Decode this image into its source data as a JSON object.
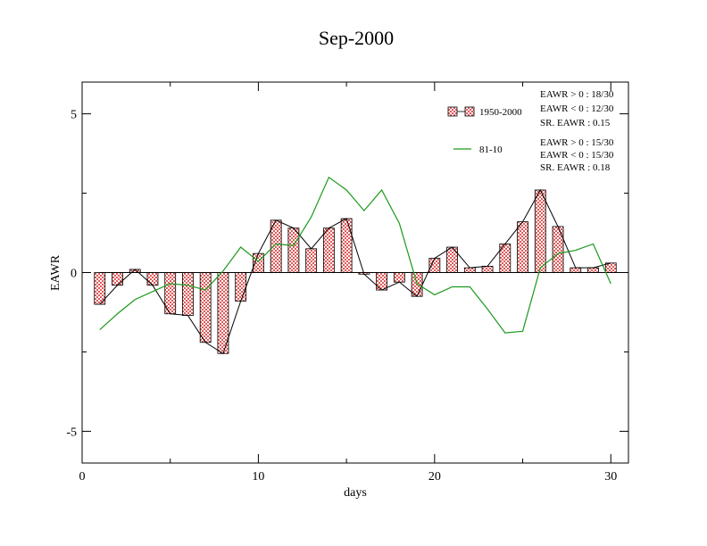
{
  "chart_data": {
    "type": "bar",
    "title": "Sep-2000",
    "xlabel": "days",
    "ylabel": "EAWR",
    "xlim": [
      0,
      31
    ],
    "ylim": [
      -6,
      6
    ],
    "xticks": [
      0,
      10,
      20,
      30
    ],
    "yticks": [
      -5,
      0,
      5
    ],
    "xtick_labels": [
      "0",
      "10",
      "20",
      "30"
    ],
    "ytick_labels": [
      "-5",
      "0",
      "5"
    ],
    "grid": false,
    "legend_position": "top-right",
    "series": [
      {
        "name": "1950-2000",
        "kind": "bar+line",
        "color": "#e87070",
        "x": [
          1,
          2,
          3,
          4,
          5,
          6,
          7,
          8,
          9,
          10,
          11,
          12,
          13,
          14,
          15,
          16,
          17,
          18,
          19,
          20,
          21,
          22,
          23,
          24,
          25,
          26,
          27,
          28,
          29,
          30
        ],
        "values": [
          -1.0,
          -0.4,
          0.1,
          -0.4,
          -1.3,
          -1.35,
          -2.2,
          -2.55,
          -0.9,
          0.6,
          1.65,
          1.4,
          0.75,
          1.4,
          1.7,
          -0.05,
          -0.55,
          -0.3,
          -0.75,
          0.45,
          0.8,
          0.15,
          0.2,
          0.9,
          1.6,
          2.6,
          1.45,
          0.15,
          0.15,
          0.3
        ]
      },
      {
        "name": "81-10",
        "kind": "line",
        "color": "#1a9a1a",
        "x": [
          1,
          2,
          3,
          4,
          5,
          6,
          7,
          8,
          9,
          10,
          11,
          12,
          13,
          14,
          15,
          16,
          17,
          18,
          19,
          20,
          21,
          22,
          23,
          24,
          25,
          26,
          27,
          28,
          29,
          30
        ],
        "values": [
          -1.8,
          -1.3,
          -0.85,
          -0.6,
          -0.35,
          -0.4,
          -0.55,
          0.05,
          0.8,
          0.35,
          0.9,
          0.85,
          1.75,
          3.0,
          2.6,
          1.95,
          2.6,
          1.55,
          -0.35,
          -0.7,
          -0.45,
          -0.45,
          -1.15,
          -1.9,
          -1.85,
          0.15,
          0.6,
          0.7,
          0.9,
          -0.35
        ]
      }
    ],
    "stats": [
      [
        "EAWR > 0 : 18/30",
        "EAWR < 0 : 12/30",
        "SR. EAWR :  0.15"
      ],
      [
        "EAWR > 0 : 15/30",
        "EAWR < 0 : 15/30",
        "SR. EAWR :  0.18"
      ]
    ]
  }
}
